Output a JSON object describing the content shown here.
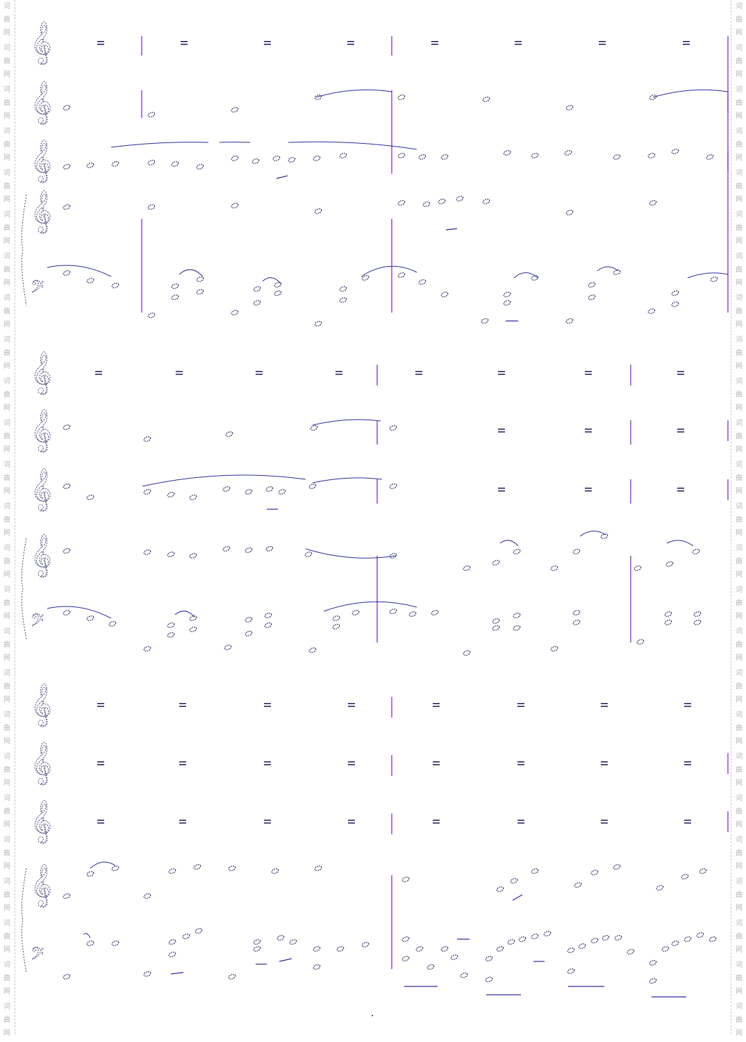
{
  "watermark": {
    "text": "词曲网"
  },
  "score": {
    "systems": 3,
    "staves_per_system": [
      "treble",
      "treble",
      "treble",
      "piano-treble",
      "piano-bass"
    ],
    "colors": {
      "ink": "#1a1a5a",
      "barline": "#7a2ee0",
      "watermark": "#b8b8b8"
    }
  }
}
